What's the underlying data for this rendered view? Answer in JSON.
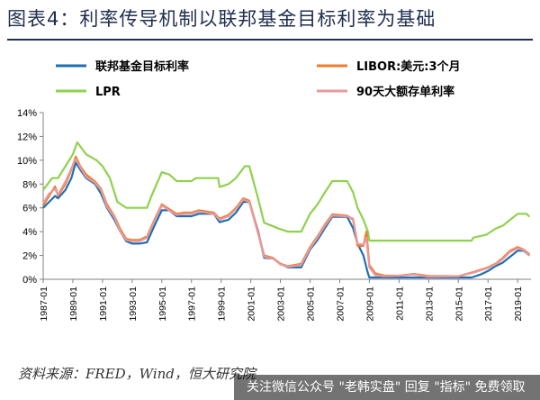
{
  "header": {
    "title": "图表4：利率传导机制以联邦基金目标利率为基础"
  },
  "footer": {
    "source": "资料来源：FRED，Wind，恒大研究院",
    "watermark": "关注微信公众号 \"老韩实盘\" 回复 \"指标\" 免费领取"
  },
  "chart_data": {
    "type": "line",
    "xlim": [
      1987,
      2019.9
    ],
    "ylim": [
      0,
      14
    ],
    "y_ticks": [
      "0%",
      "2%",
      "4%",
      "6%",
      "8%",
      "10%",
      "12%",
      "14%"
    ],
    "y_tick_values": [
      0,
      2,
      4,
      6,
      8,
      10,
      12,
      14
    ],
    "x_tick_values": [
      1987,
      1989,
      1991,
      1993,
      1995,
      1997,
      1999,
      2001,
      2003,
      2005,
      2007,
      2009,
      2011,
      2013,
      2015,
      2017,
      2019
    ],
    "x_ticks": [
      "1987-01",
      "1989-01",
      "1991-01",
      "1993-01",
      "1995-01",
      "1997-01",
      "1999-01",
      "2001-01",
      "2003-01",
      "2005-01",
      "2007-01",
      "2009-01",
      "2011-01",
      "2013-01",
      "2015-01",
      "2017-01",
      "2019-01"
    ],
    "legend_position": "top, two columns",
    "series": [
      {
        "name": "联邦基金目标利率",
        "color": "#1f6fb5",
        "points": [
          [
            1987.0,
            6.0
          ],
          [
            1987.4,
            6.5
          ],
          [
            1987.8,
            7.0
          ],
          [
            1988.0,
            6.8
          ],
          [
            1988.5,
            7.5
          ],
          [
            1988.9,
            8.5
          ],
          [
            1989.2,
            9.8
          ],
          [
            1989.5,
            9.2
          ],
          [
            1989.9,
            8.5
          ],
          [
            1990.5,
            8.0
          ],
          [
            1990.9,
            7.2
          ],
          [
            1991.3,
            6.0
          ],
          [
            1991.8,
            5.0
          ],
          [
            1992.2,
            4.0
          ],
          [
            1992.6,
            3.2
          ],
          [
            1993.0,
            3.0
          ],
          [
            1993.5,
            3.0
          ],
          [
            1994.0,
            3.1
          ],
          [
            1994.5,
            4.5
          ],
          [
            1995.0,
            5.8
          ],
          [
            1995.5,
            5.8
          ],
          [
            1996.0,
            5.3
          ],
          [
            1996.5,
            5.3
          ],
          [
            1997.0,
            5.3
          ],
          [
            1997.5,
            5.5
          ],
          [
            1998.5,
            5.5
          ],
          [
            1998.9,
            4.8
          ],
          [
            1999.5,
            5.0
          ],
          [
            2000.0,
            5.6
          ],
          [
            2000.5,
            6.5
          ],
          [
            2000.9,
            6.5
          ],
          [
            2001.5,
            4.0
          ],
          [
            2001.9,
            1.8
          ],
          [
            2002.5,
            1.75
          ],
          [
            2003.0,
            1.3
          ],
          [
            2003.5,
            1.0
          ],
          [
            2004.4,
            1.0
          ],
          [
            2005.0,
            2.5
          ],
          [
            2005.5,
            3.3
          ],
          [
            2006.0,
            4.3
          ],
          [
            2006.5,
            5.25
          ],
          [
            2007.5,
            5.25
          ],
          [
            2007.9,
            4.3
          ],
          [
            2008.2,
            3.0
          ],
          [
            2008.6,
            2.0
          ],
          [
            2008.9,
            0.5
          ],
          [
            2009.0,
            0.15
          ],
          [
            2015.9,
            0.15
          ],
          [
            2016.5,
            0.4
          ],
          [
            2017.0,
            0.7
          ],
          [
            2017.5,
            1.1
          ],
          [
            2018.0,
            1.4
          ],
          [
            2018.5,
            1.9
          ],
          [
            2019.0,
            2.4
          ],
          [
            2019.4,
            2.4
          ],
          [
            2019.8,
            2.0
          ]
        ]
      },
      {
        "name": "LIBOR:美元:3个月",
        "color": "#ec7d2c",
        "points": [
          [
            1987.0,
            6.2
          ],
          [
            1987.4,
            7.0
          ],
          [
            1987.8,
            7.8
          ],
          [
            1988.0,
            7.0
          ],
          [
            1988.5,
            8.0
          ],
          [
            1988.9,
            9.2
          ],
          [
            1989.2,
            10.3
          ],
          [
            1989.5,
            9.5
          ],
          [
            1989.9,
            8.8
          ],
          [
            1990.5,
            8.2
          ],
          [
            1990.9,
            7.6
          ],
          [
            1991.3,
            6.3
          ],
          [
            1991.8,
            5.3
          ],
          [
            1992.2,
            4.2
          ],
          [
            1992.6,
            3.4
          ],
          [
            1993.0,
            3.3
          ],
          [
            1993.5,
            3.3
          ],
          [
            1994.0,
            3.6
          ],
          [
            1994.5,
            5.0
          ],
          [
            1995.0,
            6.3
          ],
          [
            1995.5,
            5.9
          ],
          [
            1996.0,
            5.5
          ],
          [
            1996.5,
            5.6
          ],
          [
            1997.0,
            5.6
          ],
          [
            1997.5,
            5.8
          ],
          [
            1998.5,
            5.6
          ],
          [
            1998.9,
            5.1
          ],
          [
            1999.5,
            5.4
          ],
          [
            2000.0,
            6.0
          ],
          [
            2000.5,
            6.8
          ],
          [
            2000.9,
            6.6
          ],
          [
            2001.5,
            3.9
          ],
          [
            2001.9,
            2.0
          ],
          [
            2002.5,
            1.8
          ],
          [
            2003.0,
            1.3
          ],
          [
            2003.5,
            1.1
          ],
          [
            2004.4,
            1.3
          ],
          [
            2005.0,
            2.7
          ],
          [
            2005.5,
            3.6
          ],
          [
            2006.0,
            4.6
          ],
          [
            2006.5,
            5.45
          ],
          [
            2007.5,
            5.35
          ],
          [
            2007.9,
            5.0
          ],
          [
            2008.2,
            2.8
          ],
          [
            2008.6,
            2.8
          ],
          [
            2008.8,
            4.0
          ],
          [
            2009.0,
            1.2
          ],
          [
            2009.4,
            0.5
          ],
          [
            2010.0,
            0.3
          ],
          [
            2011.0,
            0.3
          ],
          [
            2012.0,
            0.45
          ],
          [
            2013.0,
            0.27
          ],
          [
            2015.0,
            0.26
          ],
          [
            2016.0,
            0.6
          ],
          [
            2016.5,
            0.8
          ],
          [
            2017.0,
            1.0
          ],
          [
            2017.5,
            1.3
          ],
          [
            2018.0,
            1.8
          ],
          [
            2018.5,
            2.4
          ],
          [
            2019.0,
            2.7
          ],
          [
            2019.4,
            2.5
          ],
          [
            2019.8,
            2.1
          ]
        ]
      },
      {
        "name": "LPR",
        "color": "#8fd14f",
        "points": [
          [
            1987.0,
            7.5
          ],
          [
            1987.6,
            8.5
          ],
          [
            1988.0,
            8.5
          ],
          [
            1988.5,
            9.5
          ],
          [
            1989.0,
            10.5
          ],
          [
            1989.3,
            11.5
          ],
          [
            1989.6,
            11.0
          ],
          [
            1989.9,
            10.5
          ],
          [
            1990.6,
            10.0
          ],
          [
            1991.0,
            9.5
          ],
          [
            1991.5,
            8.5
          ],
          [
            1992.0,
            6.5
          ],
          [
            1992.6,
            6.0
          ],
          [
            1994.0,
            6.0
          ],
          [
            1994.3,
            7.0
          ],
          [
            1995.0,
            9.0
          ],
          [
            1995.5,
            8.8
          ],
          [
            1996.0,
            8.25
          ],
          [
            1997.0,
            8.25
          ],
          [
            1997.3,
            8.5
          ],
          [
            1998.8,
            8.5
          ],
          [
            1998.9,
            7.75
          ],
          [
            1999.5,
            8.0
          ],
          [
            2000.0,
            8.5
          ],
          [
            2000.6,
            9.5
          ],
          [
            2000.9,
            9.5
          ],
          [
            2001.5,
            6.75
          ],
          [
            2001.9,
            4.75
          ],
          [
            2002.9,
            4.25
          ],
          [
            2003.5,
            4.0
          ],
          [
            2004.4,
            4.0
          ],
          [
            2005.0,
            5.5
          ],
          [
            2005.5,
            6.3
          ],
          [
            2006.0,
            7.3
          ],
          [
            2006.5,
            8.25
          ],
          [
            2007.5,
            8.25
          ],
          [
            2007.9,
            7.3
          ],
          [
            2008.2,
            6.0
          ],
          [
            2008.6,
            5.0
          ],
          [
            2008.9,
            4.0
          ],
          [
            2009.0,
            3.25
          ],
          [
            2015.9,
            3.25
          ],
          [
            2016.0,
            3.5
          ],
          [
            2016.9,
            3.75
          ],
          [
            2017.2,
            4.0
          ],
          [
            2017.5,
            4.25
          ],
          [
            2018.0,
            4.5
          ],
          [
            2018.5,
            5.0
          ],
          [
            2019.0,
            5.5
          ],
          [
            2019.6,
            5.5
          ],
          [
            2019.8,
            5.25
          ]
        ]
      },
      {
        "name": "90天大额存单利率",
        "color": "#e8999c",
        "points": [
          [
            1987.0,
            6.4
          ],
          [
            1987.4,
            7.2
          ],
          [
            1987.8,
            7.6
          ],
          [
            1988.0,
            7.1
          ],
          [
            1988.5,
            8.2
          ],
          [
            1988.9,
            9.3
          ],
          [
            1989.2,
            10.1
          ],
          [
            1989.5,
            9.4
          ],
          [
            1989.9,
            8.6
          ],
          [
            1990.5,
            8.1
          ],
          [
            1990.9,
            7.5
          ],
          [
            1991.3,
            6.1
          ],
          [
            1991.8,
            5.2
          ],
          [
            1992.2,
            4.0
          ],
          [
            1992.6,
            3.3
          ],
          [
            1993.0,
            3.2
          ],
          [
            1993.5,
            3.2
          ],
          [
            1994.0,
            3.5
          ],
          [
            1994.5,
            4.9
          ],
          [
            1995.0,
            6.2
          ],
          [
            1995.5,
            5.8
          ],
          [
            1996.0,
            5.4
          ],
          [
            1996.5,
            5.5
          ],
          [
            1997.0,
            5.5
          ],
          [
            1997.5,
            5.7
          ],
          [
            1998.5,
            5.5
          ],
          [
            1998.9,
            5.0
          ],
          [
            1999.5,
            5.3
          ],
          [
            2000.0,
            5.9
          ],
          [
            2000.5,
            6.7
          ],
          [
            2000.9,
            6.5
          ],
          [
            2001.5,
            3.8
          ],
          [
            2001.9,
            1.9
          ],
          [
            2002.5,
            1.75
          ],
          [
            2003.0,
            1.25
          ],
          [
            2003.5,
            1.05
          ],
          [
            2004.4,
            1.2
          ],
          [
            2005.0,
            2.6
          ],
          [
            2005.5,
            3.5
          ],
          [
            2006.0,
            4.5
          ],
          [
            2006.5,
            5.35
          ],
          [
            2007.5,
            5.3
          ],
          [
            2007.9,
            5.1
          ],
          [
            2008.2,
            3.0
          ],
          [
            2008.6,
            2.9
          ],
          [
            2008.8,
            3.5
          ],
          [
            2009.0,
            1.0
          ],
          [
            2009.4,
            0.35
          ],
          [
            2010.0,
            0.25
          ],
          [
            2011.0,
            0.3
          ],
          [
            2012.0,
            0.4
          ],
          [
            2013.0,
            0.22
          ],
          [
            2015.0,
            0.25
          ],
          [
            2016.0,
            0.55
          ],
          [
            2016.5,
            0.75
          ],
          [
            2017.0,
            0.95
          ],
          [
            2017.5,
            1.25
          ],
          [
            2018.0,
            1.7
          ],
          [
            2018.5,
            2.3
          ],
          [
            2019.0,
            2.6
          ],
          [
            2019.4,
            2.45
          ],
          [
            2019.8,
            2.0
          ]
        ]
      }
    ]
  }
}
